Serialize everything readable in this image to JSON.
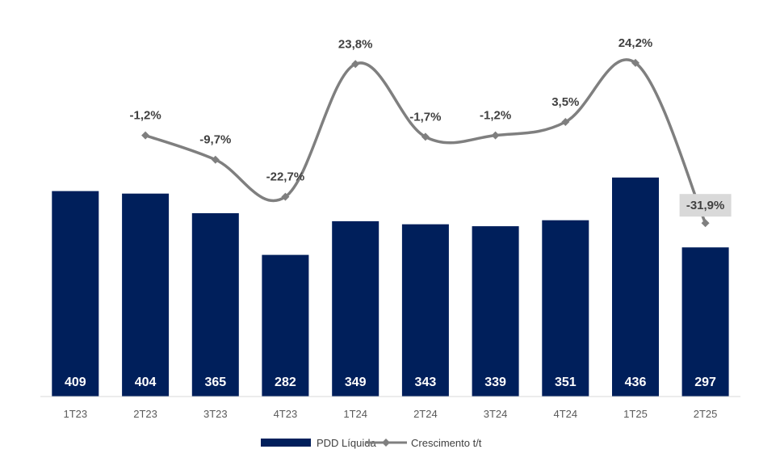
{
  "chart_data": {
    "type": "bar",
    "categories": [
      "1T23",
      "2T23",
      "3T23",
      "4T23",
      "1T24",
      "2T24",
      "3T24",
      "4T24",
      "1T25",
      "2T25"
    ],
    "series": [
      {
        "name": "PDD Líquida",
        "type": "bar",
        "values": [
          409,
          404,
          365,
          282,
          349,
          343,
          339,
          351,
          436,
          297
        ],
        "color": "#001f5b"
      },
      {
        "name": "Crescimento t/t",
        "type": "line",
        "values": [
          null,
          -1.2,
          -9.7,
          -22.7,
          23.8,
          -1.7,
          -1.2,
          3.5,
          24.2,
          -31.9
        ],
        "color": "#7f7f7f"
      }
    ],
    "bar_labels": [
      "409",
      "404",
      "365",
      "282",
      "349",
      "343",
      "339",
      "351",
      "436",
      "297"
    ],
    "line_labels": [
      "",
      "-1,2%",
      "-9,7%",
      "-22,7%",
      "23,8%",
      "-1,7%",
      "-1,2%",
      "3,5%",
      "24,2%",
      "-31,9%"
    ],
    "highlight_label_index": 9,
    "highlight_fill": "#d9d9d9",
    "legend": {
      "position": "bottom",
      "entries": [
        "PDD Líquida",
        "Crescimento t/t"
      ]
    },
    "title": "",
    "xlabel": "",
    "ylabel": "",
    "grid": false
  }
}
